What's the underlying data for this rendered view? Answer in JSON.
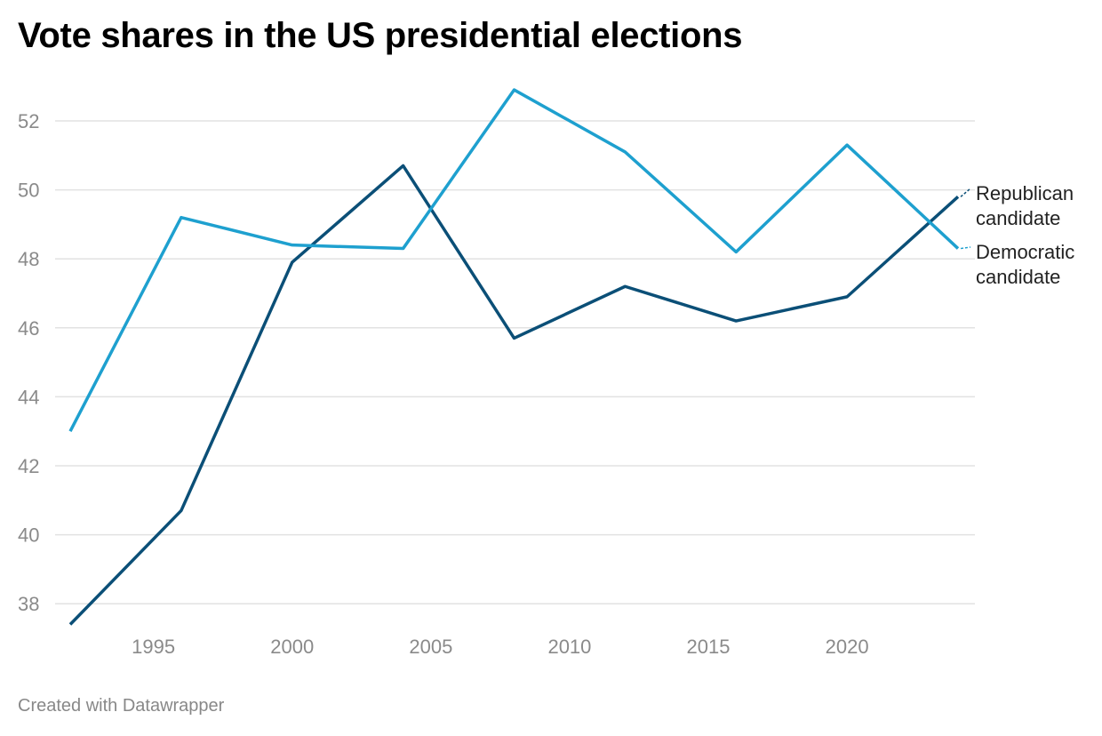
{
  "chart_data": {
    "type": "line",
    "title": "Vote shares in the US presidential elections",
    "xlabel": "",
    "ylabel": "",
    "x": [
      1992,
      1996,
      2000,
      2004,
      2008,
      2012,
      2016,
      2020,
      2024
    ],
    "xlim": [
      1992,
      2024
    ],
    "ylim": [
      37.4,
      53
    ],
    "xticks": [
      "1995",
      "2000",
      "2005",
      "2010",
      "2015",
      "2020"
    ],
    "yticks": [
      "38",
      "40",
      "42",
      "44",
      "46",
      "48",
      "50",
      "52"
    ],
    "grid": true,
    "legend": "direct labels at right",
    "series": [
      {
        "name": "Republican candidate",
        "label_lines": [
          "Republican",
          "candidate"
        ],
        "color": "#0b4f77",
        "values": [
          37.4,
          40.7,
          47.9,
          50.7,
          45.7,
          47.2,
          46.2,
          46.9,
          49.8
        ]
      },
      {
        "name": "Democratic candidate",
        "label_lines": [
          "Democratic",
          "candidate"
        ],
        "color": "#1ea0cf",
        "values": [
          43.0,
          49.2,
          48.4,
          48.3,
          52.9,
          51.1,
          48.2,
          51.3,
          48.3
        ]
      }
    ]
  },
  "footer": "Created with Datawrapper"
}
